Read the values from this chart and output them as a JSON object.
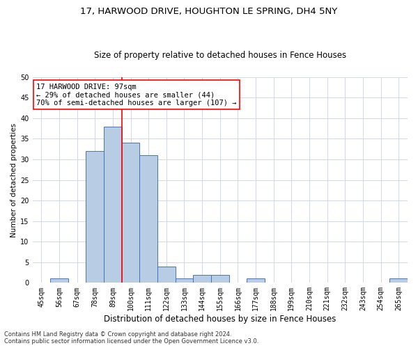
{
  "title": "17, HARWOOD DRIVE, HOUGHTON LE SPRING, DH4 5NY",
  "subtitle": "Size of property relative to detached houses in Fence Houses",
  "xlabel": "Distribution of detached houses by size in Fence Houses",
  "ylabel": "Number of detached properties",
  "categories": [
    "45sqm",
    "56sqm",
    "67sqm",
    "78sqm",
    "89sqm",
    "100sqm",
    "111sqm",
    "122sqm",
    "133sqm",
    "144sqm",
    "155sqm",
    "166sqm",
    "177sqm",
    "188sqm",
    "199sqm",
    "210sqm",
    "221sqm",
    "232sqm",
    "243sqm",
    "254sqm",
    "265sqm"
  ],
  "values": [
    0,
    1,
    0,
    32,
    38,
    34,
    31,
    4,
    1,
    2,
    2,
    0,
    1,
    0,
    0,
    0,
    0,
    0,
    0,
    0,
    1
  ],
  "bar_color": "#b8cce4",
  "bar_edge_color": "#4472c4",
  "ylim": [
    0,
    50
  ],
  "yticks": [
    0,
    5,
    10,
    15,
    20,
    25,
    30,
    35,
    40,
    45,
    50
  ],
  "annotation_line1": "17 HARWOOD DRIVE: 97sqm",
  "annotation_line2": "← 29% of detached houses are smaller (44)",
  "annotation_line3": "70% of semi-detached houses are larger (107) →",
  "annotation_box_color": "#ffffff",
  "annotation_border_color": "#ff0000",
  "footer_line1": "Contains HM Land Registry data © Crown copyright and database right 2024.",
  "footer_line2": "Contains public sector information licensed under the Open Government Licence v3.0.",
  "background_color": "#ffffff",
  "grid_color": "#d0d8e8",
  "title_fontsize": 9.5,
  "subtitle_fontsize": 8.5,
  "ylabel_fontsize": 7.5,
  "xlabel_fontsize": 8.5,
  "tick_fontsize": 7,
  "annotation_fontsize": 7.5,
  "footer_fontsize": 6
}
